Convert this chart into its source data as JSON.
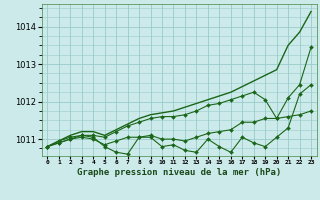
{
  "title": "Graphe pression niveau de la mer (hPa)",
  "background_color": "#cceaea",
  "grid_color": "#99cccc",
  "line_color": "#1a6618",
  "x_labels": [
    "0",
    "1",
    "2",
    "3",
    "4",
    "5",
    "6",
    "7",
    "8",
    "9",
    "10",
    "11",
    "12",
    "13",
    "14",
    "15",
    "16",
    "17",
    "18",
    "19",
    "20",
    "21",
    "22",
    "23"
  ],
  "ylim": [
    1010.55,
    1014.6
  ],
  "yticks": [
    1011,
    1012,
    1013,
    1014
  ],
  "series": [
    {
      "values": [
        1010.8,
        1010.95,
        1011.05,
        1011.1,
        1011.05,
        1010.8,
        1010.65,
        1010.6,
        1011.05,
        1011.05,
        1010.8,
        1010.85,
        1010.7,
        1010.65,
        1011.0,
        1010.8,
        1010.65,
        1011.05,
        1010.9,
        1010.8,
        1011.05,
        1011.3,
        1012.2,
        1012.45
      ],
      "marker": true,
      "linewidth": 0.8
    },
    {
      "values": [
        1010.8,
        1010.9,
        1011.0,
        1011.05,
        1011.0,
        1010.85,
        1010.95,
        1011.05,
        1011.05,
        1011.1,
        1011.0,
        1011.0,
        1010.95,
        1011.05,
        1011.15,
        1011.2,
        1011.25,
        1011.45,
        1011.45,
        1011.55,
        1011.55,
        1011.6,
        1011.65,
        1011.75
      ],
      "marker": true,
      "linewidth": 0.8
    },
    {
      "values": [
        1010.8,
        1010.9,
        1011.0,
        1011.1,
        1011.1,
        1011.05,
        1011.2,
        1011.35,
        1011.45,
        1011.55,
        1011.6,
        1011.6,
        1011.65,
        1011.75,
        1011.9,
        1011.95,
        1012.05,
        1012.15,
        1012.25,
        1012.05,
        1011.55,
        1012.1,
        1012.45,
        1013.45
      ],
      "marker": true,
      "linewidth": 0.8
    },
    {
      "values": [
        1010.8,
        1010.95,
        1011.1,
        1011.2,
        1011.2,
        1011.1,
        1011.25,
        1011.4,
        1011.55,
        1011.65,
        1011.7,
        1011.75,
        1011.85,
        1011.95,
        1012.05,
        1012.15,
        1012.25,
        1012.4,
        1012.55,
        1012.7,
        1012.85,
        1013.5,
        1013.85,
        1014.4
      ],
      "marker": false,
      "linewidth": 1.0
    }
  ]
}
